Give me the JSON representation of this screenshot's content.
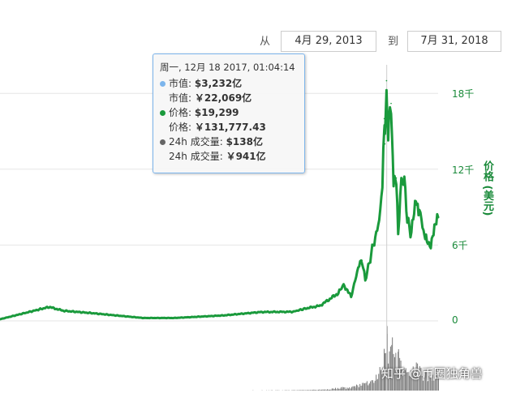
{
  "range": {
    "from_label": "从",
    "from_value": "4月 29, 2013",
    "to_label": "到",
    "to_value": "7月 31, 2018"
  },
  "tooltip": {
    "date": "周一, 12月 18 2017, 01:04:14",
    "mcap_label": "市值:",
    "mcap_usd": "$3,232亿",
    "mcap_cny_label": "市值:",
    "mcap_cny": "￥22,069亿",
    "price_label": "价格:",
    "price_usd": "$19,299",
    "price_cny_label": "价格:",
    "price_cny": "￥131,777.43",
    "vol_label": "24h 成交量:",
    "vol_usd": "$138亿",
    "vol_cny_label": "24h 成交量:",
    "vol_cny": "￥941亿"
  },
  "watermark": "知乎 @币圈独角兽",
  "colors": {
    "price_line": "#1a9a3c",
    "volume_bars": "#7a7a7a",
    "gridline": "#e6e6e6",
    "mcap_dot": "#7cb5ec",
    "price_dot": "#1a9a3c",
    "volume_dot": "#666666",
    "axis_text": "#1a8a3a"
  },
  "chart_data": {
    "type": "line",
    "x_start": "2013-04-29",
    "x_end": "2018-07-31",
    "ylabel": "价格 (美元)",
    "ylim": [
      0,
      20000
    ],
    "y_ticks": [
      {
        "value": 0,
        "label": "0"
      },
      {
        "value": 6000,
        "label": "6千"
      },
      {
        "value": 12000,
        "label": "12千"
      },
      {
        "value": 18000,
        "label": "18千"
      }
    ],
    "crosshair_date": "2017-12-18",
    "series": [
      {
        "type": "line",
        "x": [
          "2013-04-29",
          "2013-11-30",
          "2014-02-01",
          "2014-06-01",
          "2015-01-15",
          "2015-06-01",
          "2016-01-01",
          "2016-06-15",
          "2016-11-01",
          "2017-01-01",
          "2017-03-01",
          "2017-05-20",
          "2017-06-12",
          "2017-07-15",
          "2017-08-15",
          "2017-09-01",
          "2017-09-15",
          "2017-10-20",
          "2017-11-15",
          "2017-11-29",
          "2017-12-07",
          "2017-12-10",
          "2017-12-17",
          "2017-12-22",
          "2017-12-27",
          "2018-01-06",
          "2018-01-17",
          "2018-01-29",
          "2018-02-06",
          "2018-02-20",
          "2018-03-05",
          "2018-03-18",
          "2018-04-01",
          "2018-04-25",
          "2018-05-10",
          "2018-05-28",
          "2018-06-12",
          "2018-06-29",
          "2018-07-15",
          "2018-07-31"
        ],
        "values": [
          130,
          1100,
          800,
          620,
          230,
          230,
          430,
          700,
          720,
          1000,
          1200,
          2200,
          2900,
          1900,
          4200,
          4800,
          3200,
          6000,
          7800,
          11000,
          16000,
          14000,
          19000,
          14500,
          15700,
          17200,
          11000,
          11300,
          7000,
          11200,
          11000,
          8200,
          6800,
          9500,
          8800,
          7200,
          6300,
          6000,
          7300,
          8200
        ]
      },
      {
        "type": "bar",
        "name": "24h 成交量",
        "x": [
          "2013-04-29",
          "2016-01-01",
          "2016-10-01",
          "2017-01-01",
          "2017-04-01",
          "2017-06-01",
          "2017-07-01",
          "2017-08-01",
          "2017-09-01",
          "2017-10-01",
          "2017-11-01",
          "2017-11-25",
          "2017-12-08",
          "2017-12-18",
          "2017-12-28",
          "2018-01-10",
          "2018-01-25",
          "2018-02-06",
          "2018-02-20",
          "2018-03-10",
          "2018-04-01",
          "2018-04-25",
          "2018-05-15",
          "2018-06-10",
          "2018-07-01",
          "2018-07-31"
        ],
        "values": [
          0.2,
          0.3,
          0.8,
          1.5,
          3,
          8,
          6,
          12,
          18,
          22,
          35,
          70,
          140,
          138,
          110,
          120,
          80,
          90,
          60,
          55,
          45,
          60,
          50,
          40,
          35,
          50
        ]
      }
    ]
  }
}
